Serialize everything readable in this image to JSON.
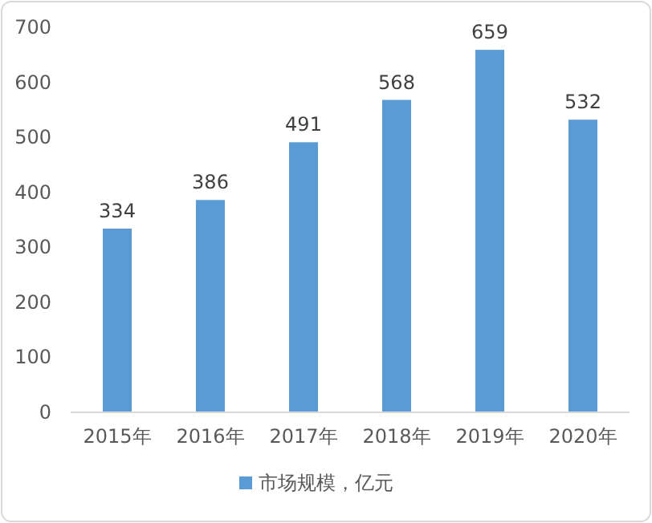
{
  "chart_data": {
    "type": "bar",
    "categories": [
      "2015年",
      "2016年",
      "2017年",
      "2018年",
      "2019年",
      "2020年"
    ],
    "series": [
      {
        "name": "市场规模，亿元",
        "color": "#5b9bd5",
        "values": [
          334,
          386,
          491,
          568,
          659,
          532
        ]
      }
    ],
    "ylim": [
      0,
      700
    ],
    "yticks": [
      0,
      100,
      200,
      300,
      400,
      500,
      600,
      700
    ],
    "data_labels": true,
    "legend": "bottom"
  }
}
